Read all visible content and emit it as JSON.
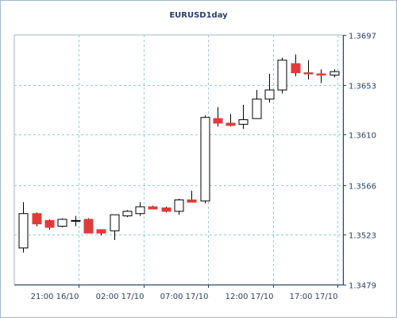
{
  "chart_data": {
    "type": "candlestick",
    "title": "EURUSD1day",
    "xlabel": "",
    "ylabel": "",
    "ylim": [
      1.3479,
      1.3697
    ],
    "yticks": [
      "1.3479",
      "1.3523",
      "1.3566",
      "1.3610",
      "1.3653",
      "1.3697"
    ],
    "xticks": [
      {
        "label": "21:00 16/10",
        "index": 4.3
      },
      {
        "label": "02:00 17/10",
        "index": 9.3
      },
      {
        "label": "07:00 17/10",
        "index": 14.3
      },
      {
        "label": "12:00 17/10",
        "index": 19.3
      },
      {
        "label": "17:00 17/10",
        "index": 24.3
      }
    ],
    "grid": true,
    "colors": {
      "up": "#ffffff",
      "down": "#e03b3b",
      "outline": "#000000",
      "grid": "#8fd0d6",
      "axis": "#2a3f63",
      "panel_border": "#9eb9cf"
    },
    "candles": [
      {
        "o": 1.3511,
        "h": 1.3551,
        "l": 1.3507,
        "c": 1.3541
      },
      {
        "o": 1.3541,
        "h": 1.3542,
        "l": 1.353,
        "c": 1.3532
      },
      {
        "o": 1.3535,
        "h": 1.3536,
        "l": 1.3527,
        "c": 1.3529
      },
      {
        "o": 1.353,
        "h": 1.3537,
        "l": 1.3529,
        "c": 1.3536
      },
      {
        "o": 1.3535,
        "h": 1.3539,
        "l": 1.353,
        "c": 1.3535
      },
      {
        "o": 1.3536,
        "h": 1.3537,
        "l": 1.3524,
        "c": 1.3524
      },
      {
        "o": 1.3527,
        "h": 1.3527,
        "l": 1.3522,
        "c": 1.3524
      },
      {
        "o": 1.3526,
        "h": 1.354,
        "l": 1.3518,
        "c": 1.354
      },
      {
        "o": 1.3539,
        "h": 1.3544,
        "l": 1.3538,
        "c": 1.3543
      },
      {
        "o": 1.3541,
        "h": 1.3551,
        "l": 1.3539,
        "c": 1.3547
      },
      {
        "o": 1.3547,
        "h": 1.3548,
        "l": 1.3545,
        "c": 1.3545
      },
      {
        "o": 1.3546,
        "h": 1.3547,
        "l": 1.3542,
        "c": 1.3543
      },
      {
        "o": 1.3543,
        "h": 1.3554,
        "l": 1.354,
        "c": 1.3553
      },
      {
        "o": 1.3553,
        "h": 1.3561,
        "l": 1.3551,
        "c": 1.3551
      },
      {
        "o": 1.3552,
        "h": 1.3627,
        "l": 1.355,
        "c": 1.3625
      },
      {
        "o": 1.3624,
        "h": 1.3634,
        "l": 1.3617,
        "c": 1.362
      },
      {
        "o": 1.362,
        "h": 1.3628,
        "l": 1.3617,
        "c": 1.3618
      },
      {
        "o": 1.3619,
        "h": 1.3636,
        "l": 1.3615,
        "c": 1.3623
      },
      {
        "o": 1.3624,
        "h": 1.3649,
        "l": 1.3624,
        "c": 1.3641
      },
      {
        "o": 1.3641,
        "h": 1.3663,
        "l": 1.3638,
        "c": 1.3649
      },
      {
        "o": 1.3649,
        "h": 1.3677,
        "l": 1.3646,
        "c": 1.3675
      },
      {
        "o": 1.3672,
        "h": 1.368,
        "l": 1.3661,
        "c": 1.3664
      },
      {
        "o": 1.3664,
        "h": 1.3675,
        "l": 1.3658,
        "c": 1.3663
      },
      {
        "o": 1.3663,
        "h": 1.3667,
        "l": 1.3655,
        "c": 1.3662
      },
      {
        "o": 1.3662,
        "h": 1.3667,
        "l": 1.366,
        "c": 1.3665
      }
    ]
  }
}
